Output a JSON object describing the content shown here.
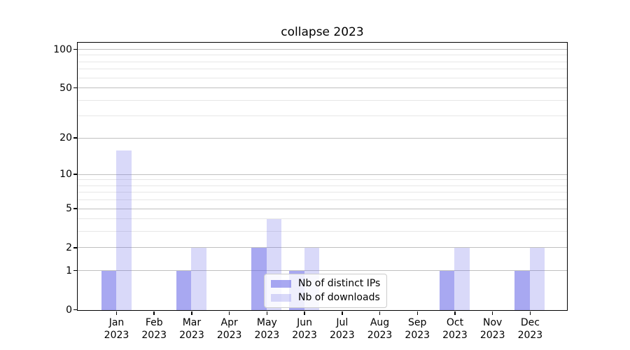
{
  "title": "collapse 2023",
  "chart_data": {
    "type": "bar",
    "title": "collapse 2023",
    "categories": [
      "Jan",
      "Feb",
      "Mar",
      "Apr",
      "May",
      "Jun",
      "Jul",
      "Aug",
      "Sep",
      "Oct",
      "Nov",
      "Dec"
    ],
    "category_year": "2023",
    "series": [
      {
        "name": "Nb of distinct IPs",
        "color": "rgba(102,102,230,0.57)",
        "values": [
          1,
          0,
          1,
          0,
          2,
          1,
          0,
          0,
          0,
          1,
          0,
          1
        ]
      },
      {
        "name": "Nb of downloads",
        "color": "rgba(102,102,230,0.25)",
        "values": [
          16,
          0,
          2,
          0,
          4,
          2,
          0,
          0,
          0,
          2,
          0,
          2
        ]
      }
    ],
    "xlabel": "",
    "ylabel": "",
    "yscale": "log1p",
    "ylim": [
      0,
      112
    ],
    "yticks_major": [
      0,
      1,
      2,
      5,
      10,
      20,
      50,
      100
    ],
    "yticks_minor": [
      3,
      4,
      6,
      7,
      8,
      9,
      30,
      40,
      60,
      70,
      80,
      90
    ],
    "grid": "horizontal",
    "legend_position": "lower center"
  },
  "colors": {
    "major_grid": "#c0c0c0",
    "minor_grid": "#e7e7e7",
    "spine": "#000000",
    "text": "#000000",
    "legend_border": "#cccccc",
    "legend_background": "rgba(255,255,255,0.8)"
  }
}
